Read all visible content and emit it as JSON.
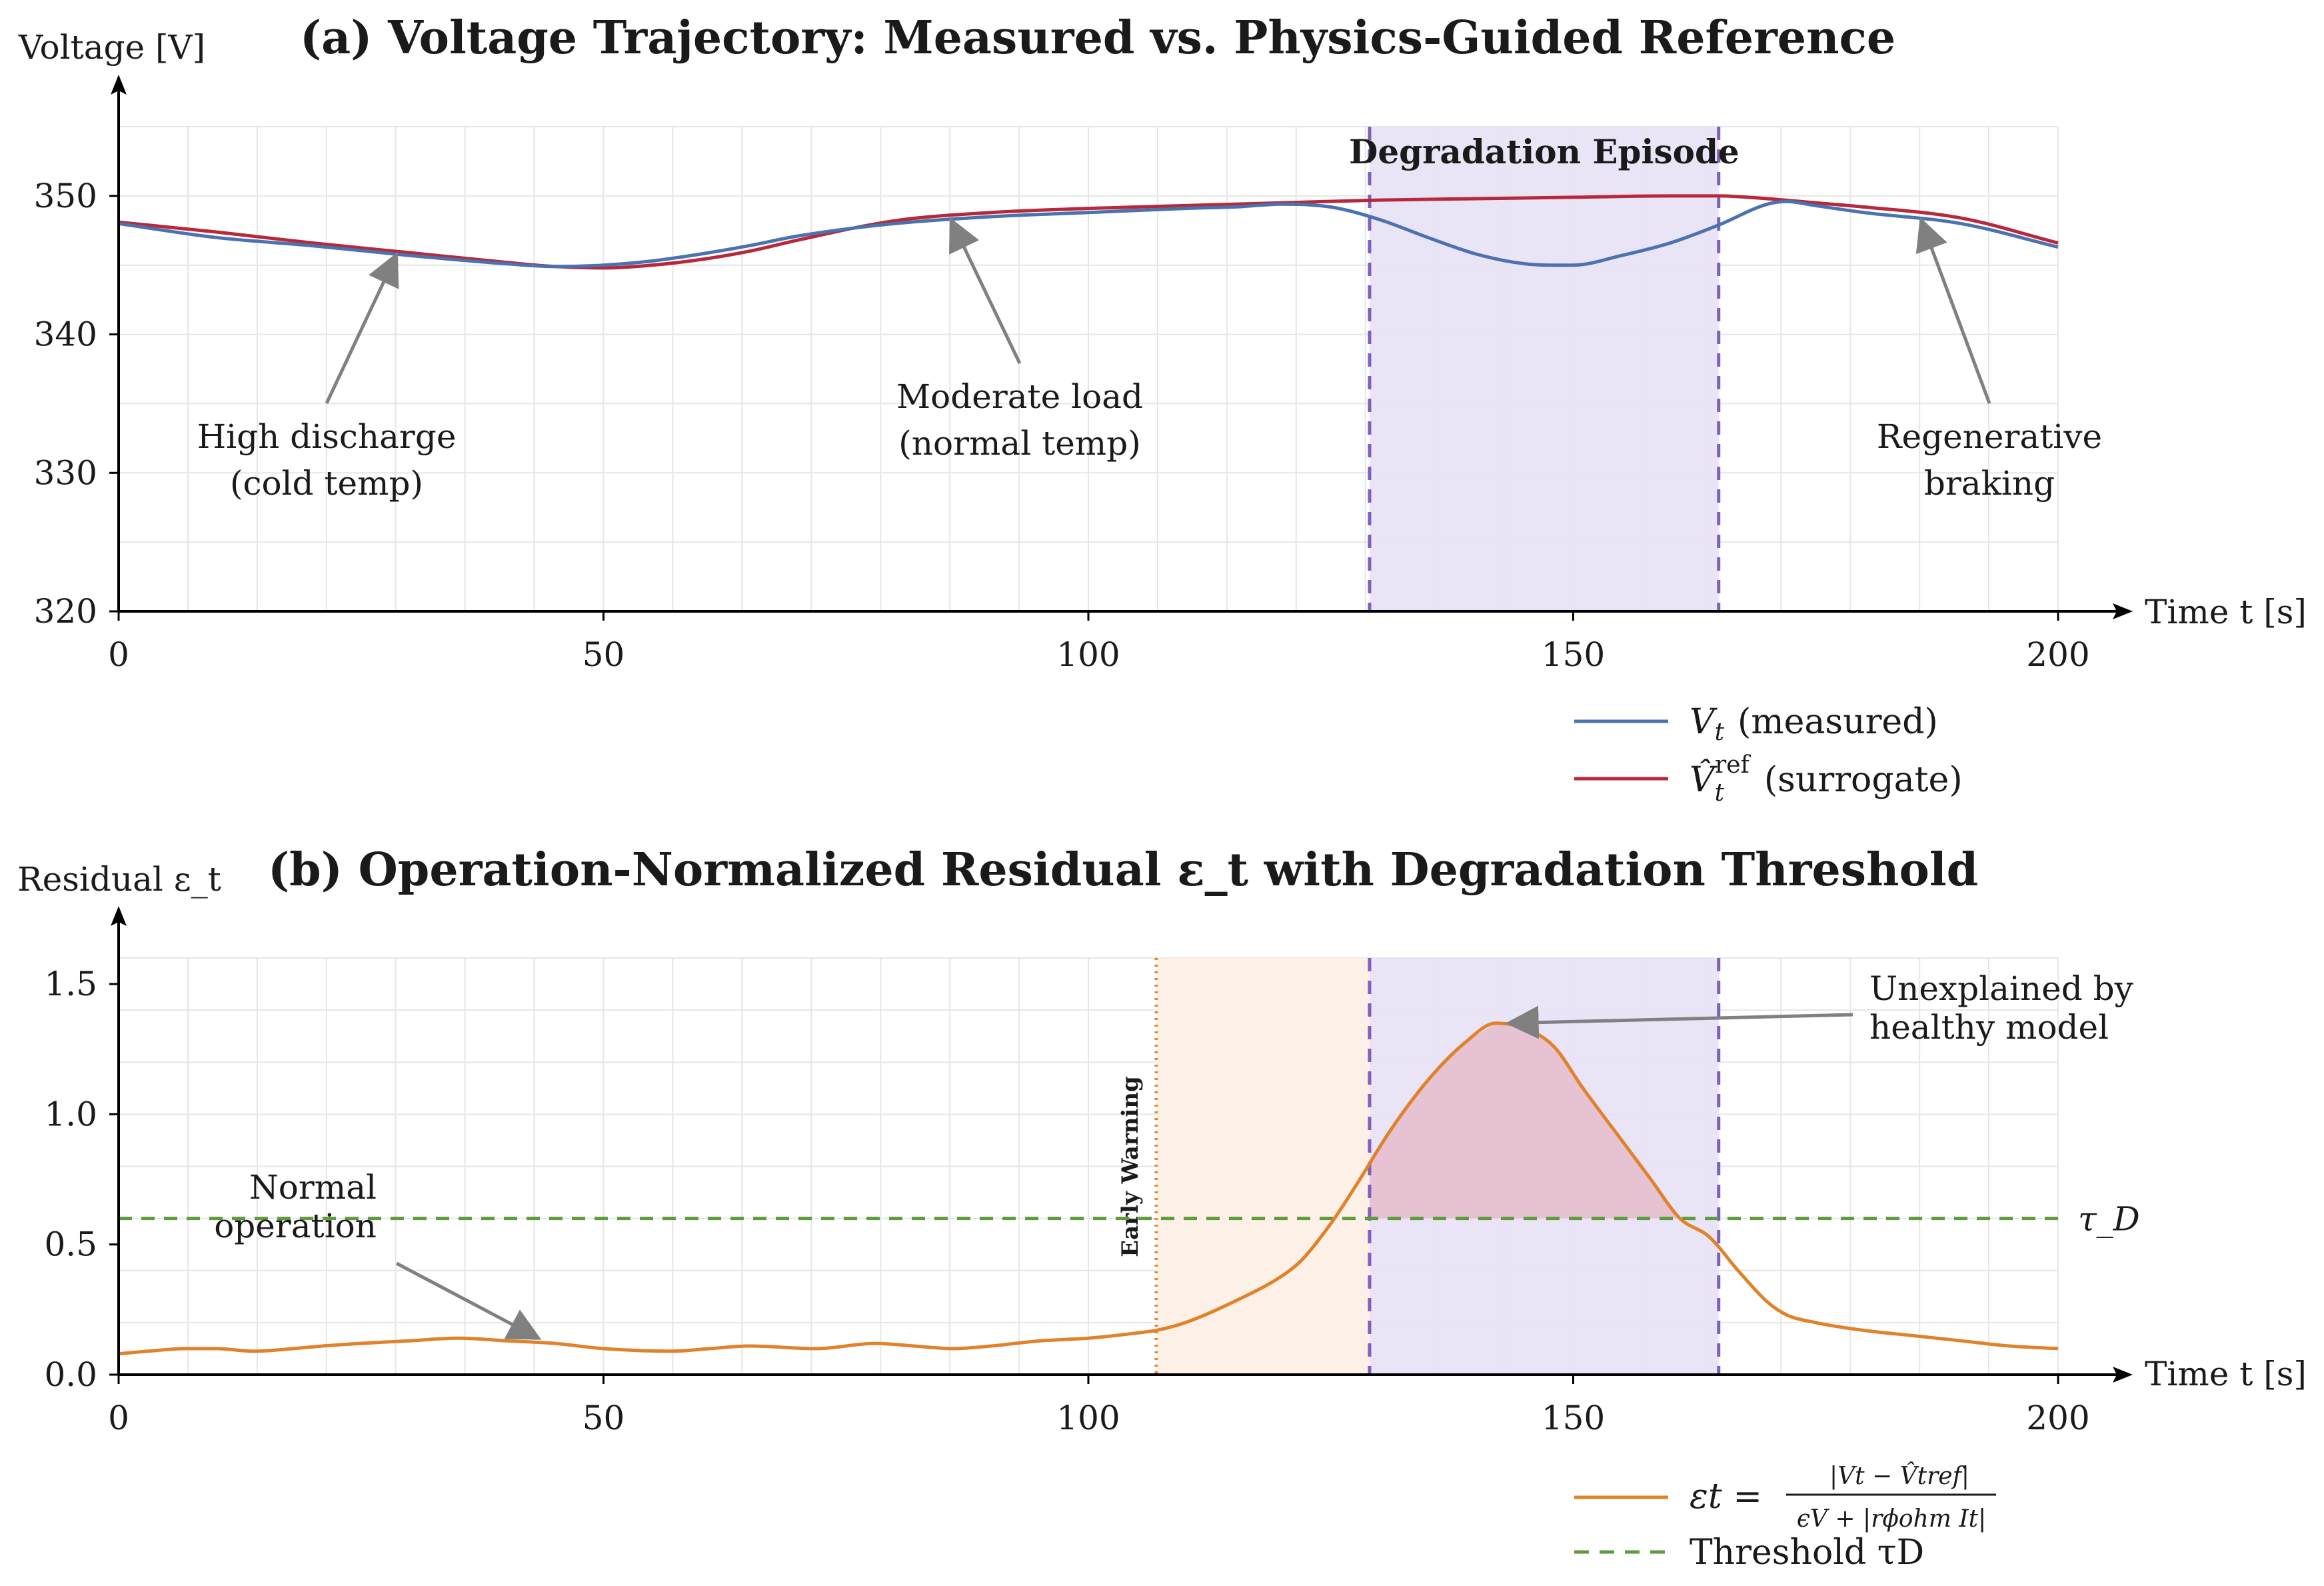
{
  "colors": {
    "measured": "#4a72b0",
    "surrogate": "#b5293a",
    "residual": "#e0822a",
    "threshold": "#5e9b3c",
    "episode_fill": "#e8e1f6",
    "episode_line": "#8060b8",
    "episode_label": "#8a6cc0",
    "early_fill": "#fdf0e6",
    "early_line": "#d98a3c",
    "exceed_fill": "#e5bccb",
    "arrow": "#808080",
    "axis": "#000000"
  },
  "chart_data": [
    {
      "id": "panel-a",
      "type": "line",
      "title": "(a) Voltage Trajectory: Measured vs. Physics-Guided Reference",
      "ylabel": "Voltage [V]",
      "xlabel": "Time t [s]",
      "xlim": [
        0,
        200
      ],
      "ylim": [
        320,
        355
      ],
      "xticks": [
        0,
        50,
        100,
        150,
        200
      ],
      "yticks": [
        320,
        330,
        340,
        350
      ],
      "grid": true,
      "shaded_region": {
        "x0": 129,
        "x1": 165,
        "label": "Degradation Episode"
      },
      "series": [
        {
          "name": "measured",
          "legend": "V_t (measured)",
          "x": [
            0,
            10,
            20,
            30,
            40,
            45,
            50,
            55,
            60,
            65,
            70,
            80,
            90,
            100,
            110,
            115,
            120,
            125,
            130,
            135,
            140,
            145,
            150,
            155,
            160,
            165,
            170,
            172,
            175,
            180,
            190,
            200
          ],
          "y": [
            348,
            347,
            346.4,
            345.7,
            345.1,
            344.9,
            345,
            345.3,
            345.8,
            346.4,
            347.1,
            348,
            348.5,
            348.8,
            349.1,
            349.2,
            349.4,
            349.2,
            348.3,
            347,
            345.8,
            345.1,
            345,
            345.7,
            346.6,
            347.9,
            349.4,
            349.6,
            349.3,
            348.8,
            348,
            346.3
          ]
        },
        {
          "name": "surrogate",
          "legend": "V^ref_t (surrogate)",
          "x": [
            0,
            10,
            20,
            30,
            40,
            45,
            50,
            55,
            60,
            65,
            70,
            80,
            90,
            100,
            110,
            120,
            130,
            140,
            150,
            160,
            165,
            170,
            175,
            180,
            190,
            200
          ],
          "y": [
            348.1,
            347.4,
            346.6,
            345.9,
            345.2,
            344.9,
            344.8,
            345,
            345.4,
            346,
            346.8,
            348.2,
            348.8,
            349.1,
            349.3,
            349.5,
            349.7,
            349.8,
            349.9,
            350,
            350,
            349.8,
            349.5,
            349.2,
            348.4,
            346.6
          ]
        }
      ],
      "annotations": [
        {
          "lines": [
            "High discharge",
            "(cold temp)"
          ],
          "target": [
            28.5,
            346
          ]
        },
        {
          "lines": [
            "Moderate load",
            "(normal temp)"
          ],
          "target": [
            86,
            348.5
          ]
        },
        {
          "lines": [
            "Regenerative",
            "braking"
          ],
          "target": [
            186,
            348.5
          ]
        }
      ]
    },
    {
      "id": "panel-b",
      "type": "line",
      "title": "(b) Operation-Normalized Residual ε_t with Degradation Threshold",
      "ylabel": "Residual ε_t",
      "xlabel": "Time t [s]",
      "xlim": [
        0,
        200
      ],
      "ylim": [
        0,
        1.6
      ],
      "xticks": [
        0,
        50,
        100,
        150,
        200
      ],
      "yticks": [
        0.0,
        0.5,
        1.0,
        1.5
      ],
      "ytick_labels": [
        "0.0",
        "0.5",
        "1.0",
        "1.5"
      ],
      "grid": true,
      "shaded_region": {
        "x0": 129,
        "x1": 165
      },
      "early_warning": {
        "x0": 107,
        "x1": 129,
        "label": "Early Warning"
      },
      "threshold": {
        "value": 0.6,
        "label": "τ_D"
      },
      "series": [
        {
          "name": "residual",
          "legend": "ε_t = |V_t − V^ref_t| / (ε_V + |r^ohm_φ I_t|)",
          "x": [
            0,
            3,
            7,
            10,
            14,
            18,
            21,
            25,
            30,
            35,
            40,
            45,
            50,
            57,
            61,
            65,
            72,
            78,
            82,
            86,
            90,
            95,
            100,
            105,
            107,
            110,
            115,
            120,
            122,
            125,
            128,
            131,
            135,
            139,
            142,
            145,
            148,
            151,
            155,
            158,
            161,
            164,
            167,
            170,
            172,
            175,
            180,
            185,
            190,
            195,
            200
          ],
          "y": [
            0.08,
            0.09,
            0.1,
            0.1,
            0.09,
            0.1,
            0.11,
            0.12,
            0.13,
            0.14,
            0.13,
            0.12,
            0.1,
            0.09,
            0.1,
            0.11,
            0.1,
            0.12,
            0.11,
            0.1,
            0.11,
            0.13,
            0.14,
            0.16,
            0.17,
            0.2,
            0.28,
            0.38,
            0.44,
            0.58,
            0.75,
            0.93,
            1.13,
            1.28,
            1.35,
            1.33,
            1.26,
            1.1,
            0.9,
            0.75,
            0.6,
            0.53,
            0.4,
            0.28,
            0.23,
            0.2,
            0.17,
            0.15,
            0.13,
            0.11,
            0.1
          ]
        }
      ],
      "annotations": [
        {
          "lines": [
            "Normal",
            "operation"
          ],
          "target": [
            43,
            0.12
          ]
        },
        {
          "lines": [
            "Unexplained by",
            "healthy model"
          ],
          "target": [
            143,
            1.35
          ]
        }
      ]
    }
  ],
  "legends": {
    "a": {
      "measured_var": "V",
      "measured_sub": "t",
      "measured_text": "(measured)",
      "surrogate_var": "V̂",
      "surrogate_sub": "t",
      "surrogate_sup": "ref",
      "surrogate_text": "(surrogate)"
    },
    "b": {
      "eps_lhs": "εt =",
      "numerator": "|Vt − V̂tref|",
      "denominator": "ϵV + |rϕohm It|",
      "threshold_text": "Threshold τD"
    }
  }
}
